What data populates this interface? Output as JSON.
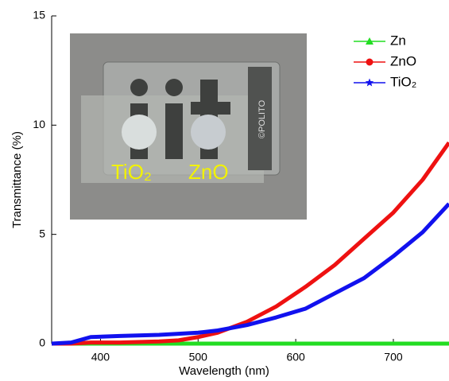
{
  "chart_data": {
    "type": "line",
    "xlabel": "Wavelength (nm)",
    "ylabel": "Transmittance (%)",
    "x": [
      350,
      370,
      390,
      420,
      460,
      480,
      500,
      520,
      550,
      580,
      610,
      640,
      670,
      700,
      730,
      757
    ],
    "series": [
      {
        "name": "Zn",
        "color": "#22dd22",
        "marker": "triangle",
        "values": [
          0,
          0,
          0,
          0,
          0,
          0,
          0,
          0,
          0,
          0,
          0,
          0,
          0,
          0,
          0,
          0
        ]
      },
      {
        "name": "ZnO",
        "color": "#ee1111",
        "marker": "circle",
        "values": [
          0,
          0,
          0.05,
          0.05,
          0.1,
          0.15,
          0.3,
          0.5,
          1.0,
          1.7,
          2.6,
          3.6,
          4.8,
          6.0,
          7.5,
          9.2
        ]
      },
      {
        "name": "TiO₂",
        "color": "#1111ee",
        "marker": "star",
        "values": [
          0,
          0.05,
          0.3,
          0.35,
          0.4,
          0.45,
          0.5,
          0.6,
          0.85,
          1.2,
          1.6,
          2.3,
          3.0,
          4.0,
          5.1,
          6.4
        ]
      }
    ],
    "xlim": [
      350,
      757
    ],
    "ylim": [
      0,
      15
    ],
    "xticks": [
      400,
      500,
      600,
      700
    ],
    "yticks": [
      0,
      5,
      10,
      15
    ],
    "legend": "upper right",
    "annotations": [
      "TiO₂",
      "ZnO",
      "©POLITO"
    ]
  }
}
